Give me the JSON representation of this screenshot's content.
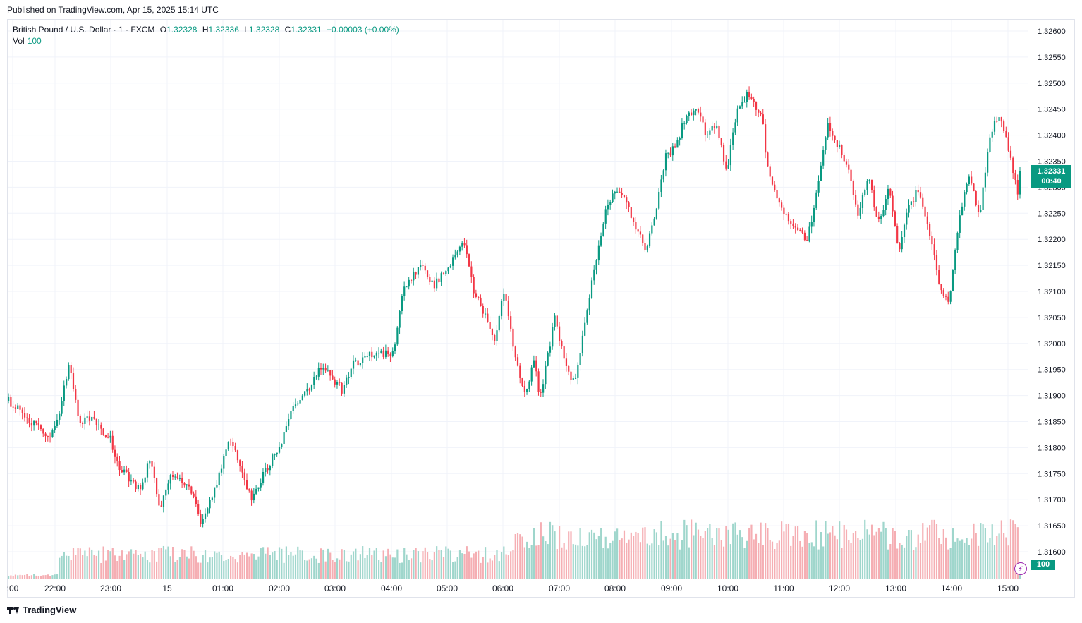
{
  "header": {
    "published": "Published on TradingView.com, Apr 15, 2025 15:14 UTC"
  },
  "legend": {
    "symbol": "British Pound / U.S. Dollar · 1 · FXCM",
    "open_label": "O",
    "open": "1.32328",
    "high_label": "H",
    "high": "1.32336",
    "low_label": "L",
    "low": "1.32328",
    "close_label": "C",
    "close": "1.32331",
    "change": "+0.00003 (+0.00%)",
    "vol_label": "Vol",
    "vol_value": "100"
  },
  "last_price": {
    "price": "1.32331",
    "countdown": "00:40"
  },
  "volume_tag": "100",
  "footer": {
    "brand": "TradingView"
  },
  "colors": {
    "up": "#089981",
    "down": "#f23645",
    "up_vol": "#9fd6cc",
    "down_vol": "#f5aeb3",
    "grid": "#f0f3fa"
  },
  "chart_data": {
    "type": "candlestick",
    "y_axis": {
      "min": 1.3156,
      "max": 1.3261,
      "ticks": [
        "1.32600",
        "1.32550",
        "1.32500",
        "1.32450",
        "1.32400",
        "1.32350",
        "1.32300",
        "1.32250",
        "1.32200",
        "1.32150",
        "1.32100",
        "1.32050",
        "1.32000",
        "1.31950",
        "1.31900",
        "1.31850",
        "1.31800",
        "1.31750",
        "1.31700",
        "1.31650",
        "1.31600"
      ]
    },
    "x_axis": {
      "ticks": [
        ":00",
        "22:00",
        "23:00",
        "15",
        "01:00",
        "02:00",
        "03:00",
        "04:00",
        "05:00",
        "06:00",
        "07:00",
        "08:00",
        "09:00",
        "10:00",
        "11:00",
        "12:00",
        "13:00",
        "14:00",
        "15:00"
      ]
    },
    "close_path": [
      [
        0.0,
        1.3189
      ],
      [
        0.04,
        1.3182
      ],
      [
        0.05,
        1.3186
      ],
      [
        0.06,
        1.3197
      ],
      [
        0.07,
        1.3184
      ],
      [
        0.08,
        1.3186
      ],
      [
        0.1,
        1.3182
      ],
      [
        0.11,
        1.3176
      ],
      [
        0.13,
        1.3172
      ],
      [
        0.14,
        1.3178
      ],
      [
        0.15,
        1.3168
      ],
      [
        0.16,
        1.3175
      ],
      [
        0.18,
        1.3172
      ],
      [
        0.19,
        1.3166
      ],
      [
        0.2,
        1.317
      ],
      [
        0.22,
        1.3182
      ],
      [
        0.23,
        1.3176
      ],
      [
        0.24,
        1.317
      ],
      [
        0.255,
        1.3176
      ],
      [
        0.27,
        1.3181
      ],
      [
        0.28,
        1.3188
      ],
      [
        0.3,
        1.3192
      ],
      [
        0.31,
        1.3196
      ],
      [
        0.33,
        1.3191
      ],
      [
        0.34,
        1.3196
      ],
      [
        0.36,
        1.3198
      ],
      [
        0.38,
        1.3198
      ],
      [
        0.39,
        1.321
      ],
      [
        0.4,
        1.3213
      ],
      [
        0.41,
        1.3215
      ],
      [
        0.42,
        1.3211
      ],
      [
        0.44,
        1.3216
      ],
      [
        0.45,
        1.322
      ],
      [
        0.46,
        1.321
      ],
      [
        0.47,
        1.3206
      ],
      [
        0.48,
        1.32
      ],
      [
        0.49,
        1.321
      ],
      [
        0.5,
        1.3198
      ],
      [
        0.51,
        1.319
      ],
      [
        0.52,
        1.3197
      ],
      [
        0.525,
        1.3189
      ],
      [
        0.54,
        1.3205
      ],
      [
        0.55,
        1.3196
      ],
      [
        0.56,
        1.3192
      ],
      [
        0.57,
        1.3205
      ],
      [
        0.58,
        1.3215
      ],
      [
        0.59,
        1.3225
      ],
      [
        0.6,
        1.323
      ],
      [
        0.61,
        1.3228
      ],
      [
        0.62,
        1.3222
      ],
      [
        0.63,
        1.3218
      ],
      [
        0.64,
        1.3225
      ],
      [
        0.65,
        1.3236
      ],
      [
        0.66,
        1.3238
      ],
      [
        0.67,
        1.3244
      ],
      [
        0.68,
        1.3245
      ],
      [
        0.69,
        1.324
      ],
      [
        0.7,
        1.3242
      ],
      [
        0.71,
        1.3233
      ],
      [
        0.72,
        1.3244
      ],
      [
        0.73,
        1.3248
      ],
      [
        0.74,
        1.3245
      ],
      [
        0.745,
        1.3244
      ],
      [
        0.75,
        1.3234
      ],
      [
        0.76,
        1.3228
      ],
      [
        0.77,
        1.3224
      ],
      [
        0.78,
        1.3222
      ],
      [
        0.79,
        1.322
      ],
      [
        0.8,
        1.323
      ],
      [
        0.81,
        1.3242
      ],
      [
        0.82,
        1.3238
      ],
      [
        0.83,
        1.3234
      ],
      [
        0.84,
        1.3225
      ],
      [
        0.85,
        1.3232
      ],
      [
        0.86,
        1.3223
      ],
      [
        0.87,
        1.323
      ],
      [
        0.88,
        1.3218
      ],
      [
        0.89,
        1.3226
      ],
      [
        0.9,
        1.323
      ],
      [
        0.91,
        1.3222
      ],
      [
        0.92,
        1.3212
      ],
      [
        0.93,
        1.3207
      ],
      [
        0.94,
        1.3225
      ],
      [
        0.95,
        1.3232
      ],
      [
        0.96,
        1.3224
      ],
      [
        0.97,
        1.324
      ],
      [
        0.98,
        1.3244
      ],
      [
        0.99,
        1.3236
      ],
      [
        1.0,
        1.3227
      ],
      [
        1.01,
        1.3233
      ]
    ],
    "candles": {
      "count": 438,
      "last_close": 1.32331,
      "last_volume": 100
    }
  }
}
